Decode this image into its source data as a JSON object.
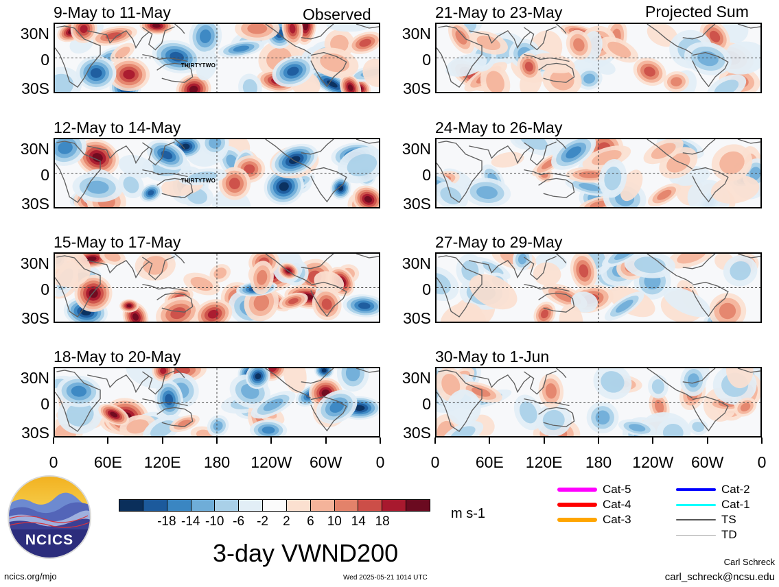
{
  "header": {
    "left_label": "Observed",
    "right_label": "Projected Sum"
  },
  "panels": [
    {
      "id": "p1",
      "title": "9-May to 11-May",
      "column": "left",
      "row": 0,
      "seed": 3,
      "amp": 1.0,
      "storm_label": "THIRTYTWO"
    },
    {
      "id": "p2",
      "title": "12-May to 14-May",
      "column": "left",
      "row": 1,
      "seed": 7,
      "amp": 1.0,
      "storm_label": "THIRTYTWO"
    },
    {
      "id": "p3",
      "title": "15-May to 17-May",
      "column": "left",
      "row": 2,
      "seed": 11,
      "amp": 1.0,
      "storm_label": ""
    },
    {
      "id": "p4",
      "title": "18-May to 20-May",
      "column": "left",
      "row": 3,
      "seed": 17,
      "amp": 1.0,
      "storm_label": ""
    },
    {
      "id": "p5",
      "title": "21-May to 23-May",
      "column": "right",
      "row": 0,
      "seed": 23,
      "amp": 0.6,
      "storm_label": ""
    },
    {
      "id": "p6",
      "title": "24-May to 26-May",
      "column": "right",
      "row": 1,
      "seed": 29,
      "amp": 0.55,
      "storm_label": ""
    },
    {
      "id": "p7",
      "title": "27-May to 29-May",
      "column": "right",
      "row": 2,
      "seed": 31,
      "amp": 0.55,
      "storm_label": ""
    },
    {
      "id": "p8",
      "title": "30-May to 1-Jun",
      "column": "right",
      "row": 3,
      "seed": 37,
      "amp": 0.5,
      "storm_label": ""
    }
  ],
  "lat_labels": [
    "30N",
    "0",
    "30S"
  ],
  "lon_labels": [
    "0",
    "60E",
    "120E",
    "180",
    "120W",
    "60W",
    "0"
  ],
  "colorbar": {
    "colors": [
      "#0a2f5b",
      "#1c5a9c",
      "#3a86c2",
      "#6fadd8",
      "#a9d0e8",
      "#e2eef6",
      "#fbfbfb",
      "#fbe0d0",
      "#f4b39a",
      "#e3826a",
      "#cc4e48",
      "#a8192e",
      "#6b0a20"
    ],
    "labels": [
      "-18",
      "-14",
      "-10",
      "-6",
      "-2",
      "2",
      "6",
      "10",
      "14",
      "18"
    ],
    "units": "m s-1"
  },
  "title": "3-day VWND200",
  "legend": [
    {
      "label": "Cat-5",
      "color": "#ff00ff",
      "width": 6
    },
    {
      "label": "Cat-4",
      "color": "#ff0000",
      "width": 6
    },
    {
      "label": "Cat-3",
      "color": "#ffa500",
      "width": 6
    },
    {
      "label": "Cat-2",
      "color": "#0000ff",
      "width": 4
    },
    {
      "label": "Cat-1",
      "color": "#00ffff",
      "width": 3
    },
    {
      "label": "TS",
      "color": "#555555",
      "width": 2
    },
    {
      "label": "TD",
      "color": "#aaaaaa",
      "width": 1
    }
  ],
  "logo": {
    "text": "NCICS"
  },
  "footer": {
    "left": "ncics.org/mjo",
    "center": "Wed 2025-05-21 1014 UTC",
    "author": "Carl Schreck",
    "email": "carl_schreck@ncsu.edu"
  }
}
